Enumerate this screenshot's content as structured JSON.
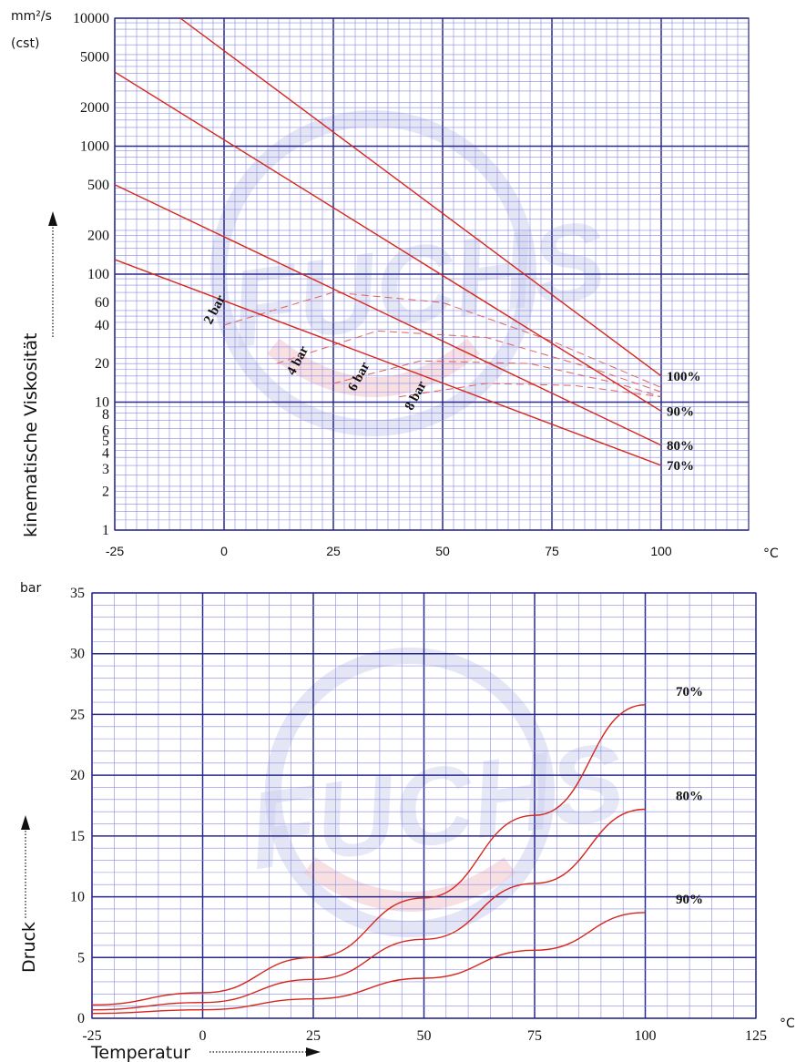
{
  "colors": {
    "grid_major": "#2a2a8c",
    "grid_minor": "#8a8ae0",
    "curve": "#d7261b",
    "curve_dashed": "#e06060",
    "watermark_blue": "#c9cdec",
    "watermark_red": "#f3d2d6"
  },
  "watermark": {
    "text": "FUCHS"
  },
  "chart_data": [
    {
      "type": "line",
      "y_scale": "log",
      "ylabel": "kinematische Viskosität",
      "unit_top": "mm²/s",
      "unit_sub": "(cst)",
      "xunit": "°C",
      "xlim": [
        -25,
        120
      ],
      "ylim": [
        1,
        10000
      ],
      "grid": true,
      "x_ticks": [
        "-25",
        "0",
        "25",
        "50",
        "75",
        "100"
      ],
      "y_ticks": [
        {
          "v": 1,
          "label": "1"
        },
        {
          "v": 2,
          "label": "2"
        },
        {
          "v": 3,
          "label": "3"
        },
        {
          "v": 4,
          "label": "4"
        },
        {
          "v": 5,
          "label": "5"
        },
        {
          "v": 6,
          "label": "6"
        },
        {
          "v": 8,
          "label": "8"
        },
        {
          "v": 10,
          "label": "10"
        },
        {
          "v": 20,
          "label": "20"
        },
        {
          "v": 40,
          "label": "40"
        },
        {
          "v": 60,
          "label": "60"
        },
        {
          "v": 100,
          "label": "100"
        },
        {
          "v": 200,
          "label": "200"
        },
        {
          "v": 500,
          "label": "500"
        },
        {
          "v": 1000,
          "label": "1000"
        },
        {
          "v": 2000,
          "label": "2000"
        },
        {
          "v": 5000,
          "label": "5000"
        },
        {
          "v": 10000,
          "label": "10000"
        }
      ],
      "series": [
        {
          "name": "100%",
          "x": [
            -10,
            100
          ],
          "y": [
            10000,
            16
          ]
        },
        {
          "name": "90%",
          "x": [
            -25,
            100
          ],
          "y": [
            3800,
            8.5
          ]
        },
        {
          "name": "80%",
          "x": [
            -25,
            100
          ],
          "y": [
            500,
            4.6
          ]
        },
        {
          "name": "70%",
          "x": [
            -25,
            100
          ],
          "y": [
            130,
            3.2
          ]
        }
      ],
      "pressure_curves": [
        {
          "name": "2 bar",
          "x": [
            0,
            25,
            50,
            75,
            100
          ],
          "y": [
            40,
            72,
            60,
            30,
            13
          ]
        },
        {
          "name": "4 bar",
          "x": [
            12,
            35,
            60,
            85,
            100
          ],
          "y": [
            20,
            36,
            32,
            18,
            12
          ]
        },
        {
          "name": "6 bar",
          "x": [
            25,
            45,
            70,
            90,
            100
          ],
          "y": [
            14,
            21,
            20,
            14,
            11
          ]
        },
        {
          "name": "8 bar",
          "x": [
            40,
            60,
            80,
            100
          ],
          "y": [
            11,
            14,
            13.5,
            11
          ]
        }
      ],
      "annotations": [
        "2 bar",
        "4 bar",
        "6 bar",
        "8 bar"
      ]
    },
    {
      "type": "line",
      "ylabel": "Druck",
      "yunit": "bar",
      "xlabel": "Temperatur",
      "xunit": "°C",
      "xlim": [
        -25,
        125
      ],
      "ylim": [
        0,
        35
      ],
      "grid": true,
      "x_ticks": [
        "-25",
        "0",
        "25",
        "50",
        "75",
        "100",
        "125"
      ],
      "y_ticks": [
        "0",
        "5",
        "10",
        "15",
        "20",
        "25",
        "30",
        "35"
      ],
      "series": [
        {
          "name": "70%",
          "x": [
            -25,
            0,
            25,
            50,
            75,
            100
          ],
          "y": [
            1.1,
            2.1,
            5.0,
            9.9,
            16.7,
            25.8
          ]
        },
        {
          "name": "80%",
          "x": [
            -25,
            0,
            25,
            50,
            75,
            100
          ],
          "y": [
            0.7,
            1.3,
            3.2,
            6.5,
            11.1,
            17.2
          ]
        },
        {
          "name": "90%",
          "x": [
            -25,
            0,
            25,
            50,
            75,
            100
          ],
          "y": [
            0.4,
            0.7,
            1.6,
            3.3,
            5.6,
            8.7
          ]
        }
      ]
    }
  ]
}
